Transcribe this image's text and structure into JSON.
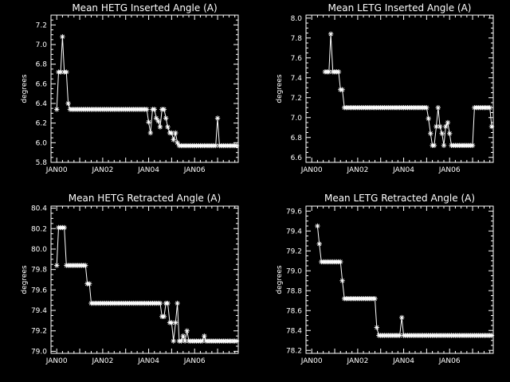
{
  "chart_data": [
    {
      "type": "line",
      "title": "Mean HETG Inserted Angle (A)",
      "xlabel": "",
      "ylabel": "degrees",
      "xlim": [
        1999.75,
        2007.9
      ],
      "ylim": [
        5.8,
        7.3
      ],
      "xticks": [
        {
          "label": "JAN00",
          "value": 2000.0
        },
        {
          "label": "JAN02",
          "value": 2002.0
        },
        {
          "label": "JAN04",
          "value": 2004.0
        },
        {
          "label": "JAN06",
          "value": 2006.0
        }
      ],
      "yticks": [
        5.8,
        6.0,
        6.2,
        6.4,
        6.6,
        6.8,
        7.0,
        7.2
      ],
      "series": [
        {
          "marker": "asterisk",
          "x": [
            2000.0,
            2000.08,
            2000.17,
            2000.25,
            2000.33,
            2000.42,
            2000.5,
            2000.58,
            2000.67,
            2000.75,
            2000.83,
            2000.92,
            2001.0,
            2001.08,
            2001.17,
            2001.25,
            2001.33,
            2001.42,
            2001.5,
            2001.58,
            2001.67,
            2001.75,
            2001.83,
            2001.92,
            2002.0,
            2002.08,
            2002.17,
            2002.25,
            2002.33,
            2002.42,
            2002.5,
            2002.58,
            2002.67,
            2002.75,
            2002.83,
            2002.92,
            2003.0,
            2003.08,
            2003.17,
            2003.25,
            2003.33,
            2003.42,
            2003.5,
            2003.58,
            2003.67,
            2003.75,
            2003.83,
            2003.92,
            2004.0,
            2004.08,
            2004.17,
            2004.25,
            2004.33,
            2004.42,
            2004.5,
            2004.58,
            2004.67,
            2004.75,
            2004.83,
            2004.92,
            2005.0,
            2005.08,
            2005.17,
            2005.25,
            2005.33,
            2005.42,
            2005.5,
            2005.58,
            2005.67,
            2005.75,
            2005.83,
            2005.92,
            2006.0,
            2006.08,
            2006.17,
            2006.25,
            2006.33,
            2006.42,
            2006.5,
            2006.58,
            2006.67,
            2006.75,
            2006.83,
            2006.92,
            2007.0,
            2007.08,
            2007.17,
            2007.25,
            2007.33,
            2007.42,
            2007.5,
            2007.58,
            2007.67,
            2007.75,
            2007.83
          ],
          "y": [
            6.34,
            6.72,
            6.72,
            7.08,
            6.72,
            6.72,
            6.4,
            6.34,
            6.34,
            6.34,
            6.34,
            6.34,
            6.34,
            6.34,
            6.34,
            6.34,
            6.34,
            6.34,
            6.34,
            6.34,
            6.34,
            6.34,
            6.34,
            6.34,
            6.34,
            6.34,
            6.34,
            6.34,
            6.34,
            6.34,
            6.34,
            6.34,
            6.34,
            6.34,
            6.34,
            6.34,
            6.34,
            6.34,
            6.34,
            6.34,
            6.34,
            6.34,
            6.34,
            6.34,
            6.34,
            6.34,
            6.34,
            6.34,
            6.21,
            6.1,
            6.34,
            6.34,
            6.25,
            6.22,
            6.16,
            6.34,
            6.34,
            6.25,
            6.16,
            6.1,
            6.1,
            6.03,
            6.1,
            6.0,
            5.97,
            5.97,
            5.97,
            5.97,
            5.97,
            5.97,
            5.97,
            5.97,
            5.97,
            5.97,
            5.97,
            5.97,
            5.97,
            5.97,
            5.97,
            5.97,
            5.97,
            5.97,
            5.97,
            5.97,
            6.25,
            5.97,
            5.97,
            5.97,
            5.97,
            5.97,
            5.97,
            5.97,
            5.97,
            5.97,
            5.97
          ]
        }
      ]
    },
    {
      "type": "line",
      "title": "Mean LETG Inserted Angle (A)",
      "xlabel": "",
      "ylabel": "degrees",
      "xlim": [
        1999.75,
        2007.9
      ],
      "ylim": [
        6.55,
        8.03
      ],
      "xticks": [
        {
          "label": "JAN00",
          "value": 2000.0
        },
        {
          "label": "JAN02",
          "value": 2002.0
        },
        {
          "label": "JAN04",
          "value": 2004.0
        },
        {
          "label": "JAN06",
          "value": 2006.0
        }
      ],
      "yticks": [
        6.6,
        6.8,
        7.0,
        7.2,
        7.4,
        7.6,
        7.8,
        8.0
      ],
      "series": [
        {
          "marker": "asterisk",
          "x": [
            2000.0,
            2000.08,
            2000.17,
            2000.25,
            2000.33,
            2000.42,
            2000.5,
            2000.58,
            2000.67,
            2000.75,
            2000.83,
            2000.92,
            2001.0,
            2001.08,
            2001.17,
            2001.25,
            2001.33,
            2001.42,
            2001.5,
            2001.58,
            2001.67,
            2001.75,
            2001.83,
            2001.92,
            2002.0,
            2002.08,
            2002.17,
            2002.25,
            2002.33,
            2002.42,
            2002.5,
            2002.58,
            2002.67,
            2002.75,
            2002.83,
            2002.92,
            2003.0,
            2003.08,
            2003.17,
            2003.25,
            2003.33,
            2003.42,
            2003.5,
            2003.58,
            2003.67,
            2003.75,
            2003.83,
            2003.92,
            2004.0,
            2004.08,
            2004.17,
            2004.25,
            2004.33,
            2004.42,
            2004.5,
            2004.58,
            2004.67,
            2004.75,
            2004.83,
            2004.92,
            2005.0,
            2005.08,
            2005.17,
            2005.25,
            2005.33,
            2005.42,
            2005.5,
            2005.58,
            2005.67,
            2005.75,
            2005.83,
            2005.92,
            2006.0,
            2006.08,
            2006.17,
            2006.25,
            2006.33,
            2006.42,
            2006.5,
            2006.58,
            2006.67,
            2006.75,
            2006.83,
            2006.92,
            2007.0,
            2007.08,
            2007.17,
            2007.25,
            2007.33,
            2007.42,
            2007.5,
            2007.58,
            2007.67,
            2007.75,
            2007.83
          ],
          "y": [
            null,
            null,
            null,
            null,
            null,
            null,
            null,
            7.46,
            7.46,
            7.46,
            7.84,
            7.46,
            7.46,
            7.46,
            7.46,
            7.28,
            7.28,
            7.1,
            7.1,
            7.1,
            7.1,
            7.1,
            7.1,
            7.1,
            7.1,
            7.1,
            7.1,
            7.1,
            7.1,
            7.1,
            7.1,
            7.1,
            7.1,
            7.1,
            7.1,
            7.1,
            7.1,
            7.1,
            7.1,
            7.1,
            7.1,
            7.1,
            7.1,
            7.1,
            7.1,
            7.1,
            7.1,
            7.1,
            7.1,
            7.1,
            7.1,
            7.1,
            7.1,
            7.1,
            7.1,
            7.1,
            7.1,
            7.1,
            7.1,
            7.1,
            7.1,
            6.99,
            6.84,
            6.72,
            6.72,
            6.91,
            7.1,
            6.91,
            6.84,
            6.72,
            6.91,
            6.95,
            6.84,
            6.72,
            6.72,
            6.72,
            6.72,
            6.72,
            6.72,
            6.72,
            6.72,
            6.72,
            6.72,
            6.72,
            6.72,
            7.1,
            7.1,
            7.1,
            7.1,
            7.1,
            7.1,
            7.1,
            7.1,
            7.1,
            6.91
          ]
        }
      ]
    },
    {
      "type": "line",
      "title": "Mean HETG Retracted Angle (A)",
      "xlabel": "",
      "ylabel": "degrees",
      "xlim": [
        1999.75,
        2007.9
      ],
      "ylim": [
        78.98,
        80.42
      ],
      "xticks": [
        {
          "label": "JAN00",
          "value": 2000.0
        },
        {
          "label": "JAN02",
          "value": 2002.0
        },
        {
          "label": "JAN04",
          "value": 2004.0
        },
        {
          "label": "JAN06",
          "value": 2006.0
        }
      ],
      "yticks": [
        79.0,
        79.2,
        79.4,
        79.6,
        79.8,
        80.0,
        80.2,
        80.4
      ],
      "series": [
        {
          "marker": "asterisk",
          "x": [
            2000.0,
            2000.08,
            2000.17,
            2000.25,
            2000.33,
            2000.42,
            2000.5,
            2000.58,
            2000.67,
            2000.75,
            2000.83,
            2000.92,
            2001.0,
            2001.08,
            2001.17,
            2001.25,
            2001.33,
            2001.42,
            2001.5,
            2001.58,
            2001.67,
            2001.75,
            2001.83,
            2001.92,
            2002.0,
            2002.08,
            2002.17,
            2002.25,
            2002.33,
            2002.42,
            2002.5,
            2002.58,
            2002.67,
            2002.75,
            2002.83,
            2002.92,
            2003.0,
            2003.08,
            2003.17,
            2003.25,
            2003.33,
            2003.42,
            2003.5,
            2003.58,
            2003.67,
            2003.75,
            2003.83,
            2003.92,
            2004.0,
            2004.08,
            2004.17,
            2004.25,
            2004.33,
            2004.42,
            2004.5,
            2004.58,
            2004.67,
            2004.75,
            2004.83,
            2004.92,
            2005.0,
            2005.08,
            2005.17,
            2005.25,
            2005.33,
            2005.42,
            2005.5,
            2005.58,
            2005.67,
            2005.75,
            2005.83,
            2005.92,
            2006.0,
            2006.08,
            2006.17,
            2006.25,
            2006.33,
            2006.42,
            2006.5,
            2006.58,
            2006.67,
            2006.75,
            2006.83,
            2006.92,
            2007.0,
            2007.08,
            2007.17,
            2007.25,
            2007.33,
            2007.42,
            2007.5,
            2007.58,
            2007.67,
            2007.75,
            2007.83
          ],
          "y": [
            79.84,
            80.21,
            80.21,
            80.21,
            80.21,
            79.84,
            79.84,
            79.84,
            79.84,
            79.84,
            79.84,
            79.84,
            79.84,
            79.84,
            79.84,
            79.84,
            79.66,
            79.66,
            79.47,
            79.47,
            79.47,
            79.47,
            79.47,
            79.47,
            79.47,
            79.47,
            79.47,
            79.47,
            79.47,
            79.47,
            79.47,
            79.47,
            79.47,
            79.47,
            79.47,
            79.47,
            79.47,
            79.47,
            79.47,
            79.47,
            79.47,
            79.47,
            79.47,
            79.47,
            79.47,
            79.47,
            79.47,
            79.47,
            79.47,
            79.47,
            79.47,
            79.47,
            79.47,
            79.47,
            79.47,
            79.34,
            79.34,
            79.47,
            79.47,
            79.28,
            79.28,
            79.1,
            79.28,
            79.47,
            79.1,
            79.1,
            79.15,
            79.1,
            79.2,
            79.1,
            79.1,
            79.1,
            79.1,
            79.1,
            79.1,
            79.1,
            79.1,
            79.15,
            79.1,
            79.1,
            79.1,
            79.1,
            79.1,
            79.1,
            79.1,
            79.1,
            79.1,
            79.1,
            79.1,
            79.1,
            79.1,
            79.1,
            79.1,
            79.1,
            79.1
          ]
        }
      ]
    },
    {
      "type": "line",
      "title": "Mean LETG Retracted Angle (A)",
      "xlabel": "",
      "ylabel": "degrees",
      "xlim": [
        1999.75,
        2007.9
      ],
      "ylim": [
        78.17,
        79.65
      ],
      "xticks": [
        {
          "label": "JAN00",
          "value": 2000.0
        },
        {
          "label": "JAN02",
          "value": 2002.0
        },
        {
          "label": "JAN04",
          "value": 2004.0
        },
        {
          "label": "JAN06",
          "value": 2006.0
        }
      ],
      "yticks": [
        78.2,
        78.4,
        78.6,
        78.8,
        79.0,
        79.2,
        79.4,
        79.6
      ],
      "series": [
        {
          "marker": "asterisk",
          "x": [
            2000.0,
            2000.08,
            2000.17,
            2000.25,
            2000.33,
            2000.42,
            2000.5,
            2000.58,
            2000.67,
            2000.75,
            2000.83,
            2000.92,
            2001.0,
            2001.08,
            2001.17,
            2001.25,
            2001.33,
            2001.42,
            2001.5,
            2001.58,
            2001.67,
            2001.75,
            2001.83,
            2001.92,
            2002.0,
            2002.08,
            2002.17,
            2002.25,
            2002.33,
            2002.42,
            2002.5,
            2002.58,
            2002.67,
            2002.75,
            2002.83,
            2002.92,
            2003.0,
            2003.08,
            2003.17,
            2003.25,
            2003.33,
            2003.42,
            2003.5,
            2003.58,
            2003.67,
            2003.75,
            2003.83,
            2003.92,
            2004.0,
            2004.08,
            2004.17,
            2004.25,
            2004.33,
            2004.42,
            2004.5,
            2004.58,
            2004.67,
            2004.75,
            2004.83,
            2004.92,
            2005.0,
            2005.08,
            2005.17,
            2005.25,
            2005.33,
            2005.42,
            2005.5,
            2005.58,
            2005.67,
            2005.75,
            2005.83,
            2005.92,
            2006.0,
            2006.08,
            2006.17,
            2006.25,
            2006.33,
            2006.42,
            2006.5,
            2006.58,
            2006.67,
            2006.75,
            2006.83,
            2006.92,
            2007.0,
            2007.08,
            2007.17,
            2007.25,
            2007.33,
            2007.42,
            2007.5,
            2007.58,
            2007.67,
            2007.75,
            2007.83
          ],
          "y": [
            null,
            null,
            null,
            79.45,
            79.27,
            79.09,
            79.09,
            79.09,
            79.09,
            79.09,
            79.09,
            79.09,
            79.09,
            79.09,
            79.09,
            79.09,
            78.9,
            78.72,
            78.72,
            78.72,
            78.72,
            78.72,
            78.72,
            78.72,
            78.72,
            78.72,
            78.72,
            78.72,
            78.72,
            78.72,
            78.72,
            78.72,
            78.72,
            78.72,
            78.43,
            78.35,
            78.35,
            78.35,
            78.35,
            78.35,
            78.35,
            78.35,
            78.35,
            78.35,
            78.35,
            78.35,
            78.35,
            78.53,
            78.35,
            78.35,
            78.35,
            78.35,
            78.35,
            78.35,
            78.35,
            78.35,
            78.35,
            78.35,
            78.35,
            78.35,
            78.35,
            78.35,
            78.35,
            78.35,
            78.35,
            78.35,
            78.35,
            78.35,
            78.35,
            78.35,
            78.35,
            78.35,
            78.35,
            78.35,
            78.35,
            78.35,
            78.35,
            78.35,
            78.35,
            78.35,
            78.35,
            78.35,
            78.35,
            78.35,
            78.35,
            78.35,
            78.35,
            78.35,
            78.35,
            78.35,
            78.35,
            78.35,
            78.35,
            78.35,
            78.35
          ]
        }
      ]
    }
  ]
}
